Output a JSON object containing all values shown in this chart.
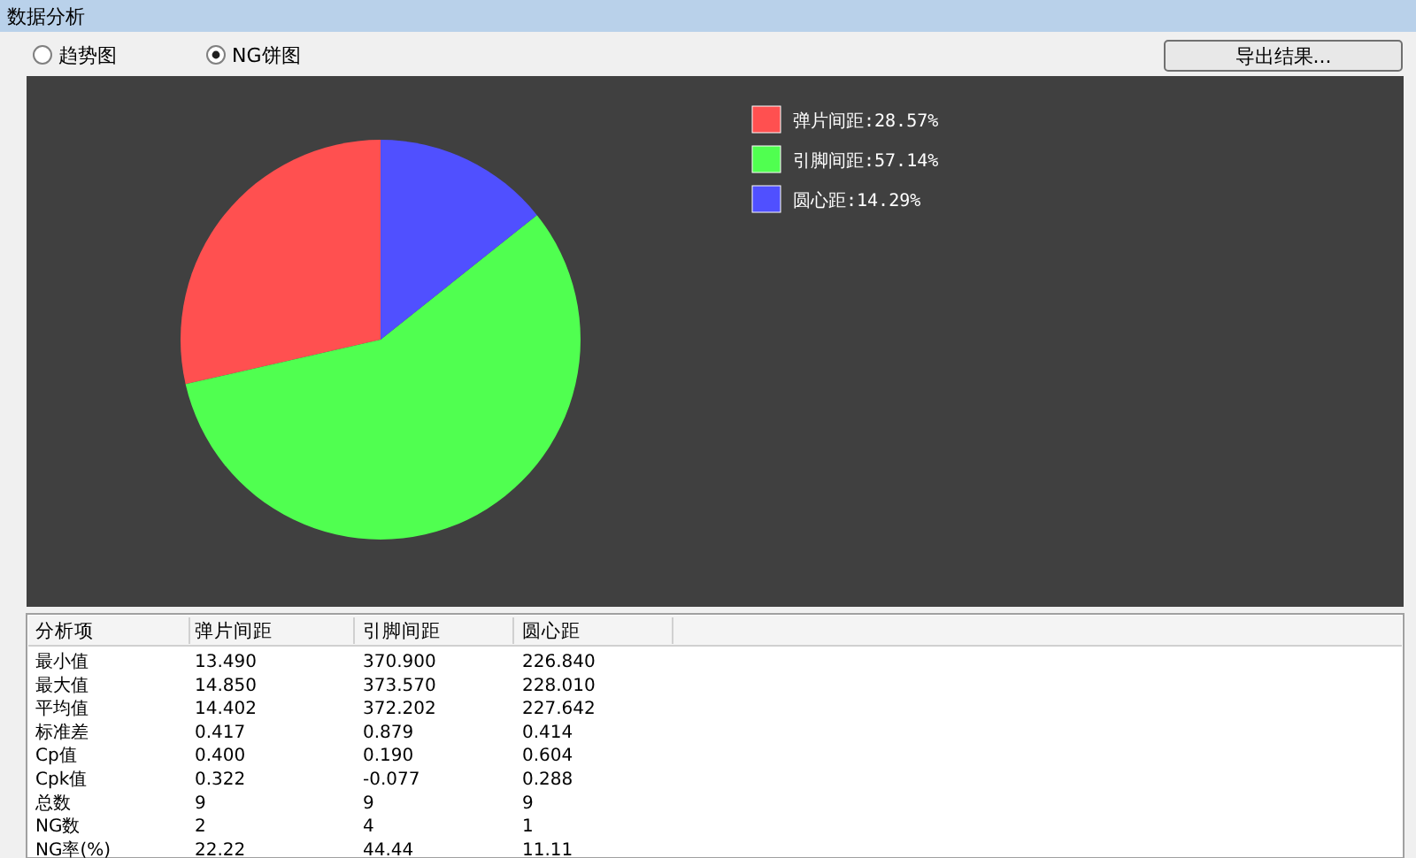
{
  "chart_data": [
    {
      "type": "pie",
      "title": "数据分析",
      "categories": [
        "弹片间距:28.57%",
        "引脚间距:57.14%",
        "圆心距:14.29%"
      ],
      "values": [
        28.57,
        57.14,
        14.29
      ],
      "colors": [
        "#ff5050",
        "#50ff50",
        "#5050ff"
      ],
      "legend": "top right",
      "annotations": [
        "趋势图",
        "NG饼图",
        "导出结果..."
      ]
    },
    {
      "type": "other",
      "categories": [
        "分析项",
        "弹片间距",
        "引脚间距",
        "圆心距"
      ],
      "y_categories": [
        "最小值",
        "最大值",
        "平均值",
        "标准差",
        "Cp值",
        "Cpk值",
        "总数",
        "NG数",
        "NG率(%)"
      ],
      "cell_labels": [
        [
          "13.490",
          "370.900",
          "226.840"
        ],
        [
          "14.850",
          "373.570",
          "228.010"
        ],
        [
          "14.402",
          "372.202",
          "227.642"
        ],
        [
          "0.417",
          "0.879",
          "0.414"
        ],
        [
          "0.400",
          "0.190",
          "0.604"
        ],
        [
          "0.322",
          "-0.077",
          "0.288"
        ],
        [
          "9",
          "9",
          "9"
        ],
        [
          "2",
          "4",
          "1"
        ],
        [
          "22.22",
          "44.44",
          "11.11"
        ]
      ]
    }
  ]
}
